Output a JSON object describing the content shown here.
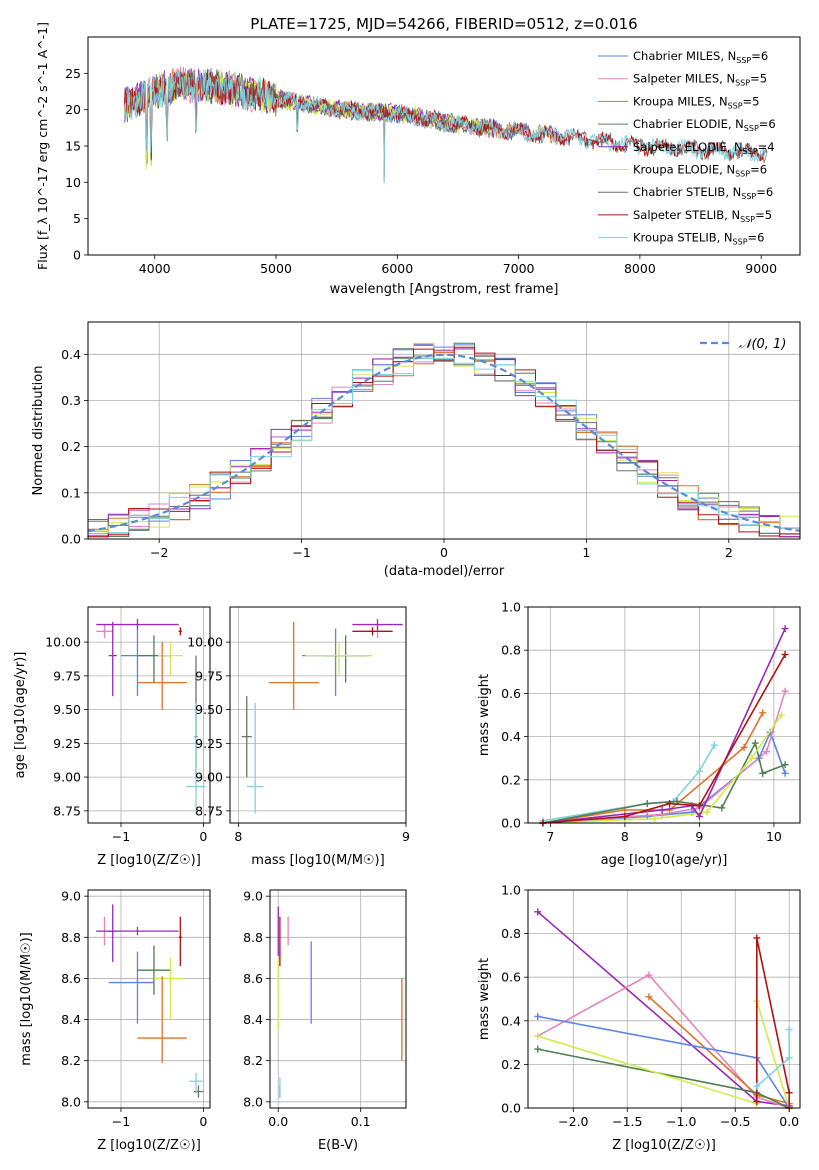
{
  "colors": {
    "blue": "#5b84e6",
    "pink": "#e384c1",
    "orange": "#de7327",
    "green": "#4f7f55",
    "purple": "#9a28b3",
    "yellow": "#d2ea4b",
    "gray": "#6f6f6f",
    "red": "#b01212",
    "cyan": "#7fd3de"
  },
  "chart_data": [
    {
      "id": "spectrum",
      "type": "line",
      "title": "PLATE=1725, MJD=54266, FIBERID=0512, z=0.016",
      "xlabel": "wavelength [Angstrom, rest frame]",
      "ylabel": "Flux [f_λ 10^-17 erg cm^-2 s^-1 A^-1]",
      "xlim": [
        3450,
        9320
      ],
      "ylim": [
        0,
        30
      ],
      "xticks": [
        "4000",
        "5000",
        "6000",
        "7000",
        "8000",
        "9000"
      ],
      "yticks": [
        "0",
        "5",
        "10",
        "15",
        "20",
        "25"
      ],
      "grid": false,
      "legend_position": "top-right",
      "continuum": {
        "x": [
          3750,
          4000,
          4200,
          4600,
          5000,
          5500,
          6000,
          6500,
          7000,
          7500,
          8000,
          8500,
          9050
        ],
        "y": [
          20.5,
          22.5,
          23.5,
          23.0,
          21.5,
          20.0,
          19.5,
          18.0,
          17.0,
          16.0,
          15.0,
          14.5,
          14.0
        ]
      },
      "series": [
        {
          "name": "Chabrier MILES",
          "nssp": "6",
          "color": "blue",
          "xmax": 7400
        },
        {
          "name": "Salpeter MILES",
          "nssp": "5",
          "color": "pink",
          "xmax": 7400
        },
        {
          "name": "Kroupa MILES",
          "nssp": "5",
          "color": "orange",
          "xmax": 7400
        },
        {
          "name": "Chabrier ELODIE",
          "nssp": "6",
          "color": "green",
          "xmax": 6800
        },
        {
          "name": "Salpeter ELODIE",
          "nssp": "4",
          "color": "purple",
          "xmax": 6800
        },
        {
          "name": "Kroupa ELODIE",
          "nssp": "6",
          "color": "yellow",
          "xmax": 6800
        },
        {
          "name": "Chabrier STELIB",
          "nssp": "6",
          "color": "gray",
          "xmax": 9050
        },
        {
          "name": "Salpeter STELIB",
          "nssp": "5",
          "color": "red",
          "xmax": 9050
        },
        {
          "name": "Kroupa STELIB",
          "nssp": "6",
          "color": "cyan",
          "xmax": 9050
        }
      ]
    },
    {
      "id": "residuals",
      "type": "line",
      "xlabel": "(data-model)/error",
      "ylabel": "Normed distribution",
      "xlim": [
        -2.5,
        2.5
      ],
      "ylim": [
        0,
        0.47
      ],
      "xticks": [
        -2,
        -1,
        0,
        1,
        2
      ],
      "xtick_labels": [
        "−2",
        "−1",
        "0",
        "1",
        "2"
      ],
      "yticks": [
        0.0,
        0.1,
        0.2,
        0.3,
        0.4
      ],
      "ytick_labels": [
        "0.0",
        "0.1",
        "0.2",
        "0.3",
        "0.4"
      ],
      "grid": true,
      "legend_position": "top-right",
      "legend_label": "𝒩(0, 1)",
      "bin_edges": [
        -2.5,
        2.5
      ],
      "bins": 35
    },
    {
      "id": "age-vs-z",
      "type": "scatter",
      "xlabel": "Z [log10(Z/Z☉)]",
      "ylabel": "age  [log10(age/yr)]",
      "xlim": [
        -1.4,
        0.08
      ],
      "ylim": [
        8.66,
        10.26
      ],
      "xticks": [
        -1,
        0
      ],
      "xtick_labels": [
        "−1",
        "0"
      ],
      "yticks": [
        8.75,
        9.0,
        9.25,
        9.5,
        9.75,
        10.0
      ],
      "ytick_labels": [
        "8.75",
        "9.00",
        "9.25",
        "9.50",
        "9.75",
        "10.00"
      ],
      "grid": true,
      "points": [
        {
          "color": "pink",
          "x": -1.2,
          "xerr": [
            0.1,
            0.1
          ],
          "y": 10.08,
          "yerr": [
            0.05,
            0.05
          ]
        },
        {
          "color": "purple",
          "x": -0.8,
          "xerr": [
            0.5,
            0.5
          ],
          "y": 10.13,
          "yerr": [
            0.04,
            0.04
          ]
        },
        {
          "color": "purple",
          "x": -1.1,
          "xerr": [
            0.05,
            0.05
          ],
          "y": 9.9,
          "yerr": [
            0.3,
            0.25
          ]
        },
        {
          "color": "blue",
          "x": -0.8,
          "xerr": [
            0.2,
            0.2
          ],
          "y": 9.9,
          "yerr": [
            0.3,
            0.2
          ]
        },
        {
          "color": "green",
          "x": -0.6,
          "xerr": [
            0.2,
            0.2
          ],
          "y": 9.9,
          "yerr": [
            0.2,
            0.15
          ]
        },
        {
          "color": "yellow",
          "x": -0.4,
          "xerr": [
            0.15,
            0.15
          ],
          "y": 9.9,
          "yerr": [
            0.15,
            0.1
          ]
        },
        {
          "color": "orange",
          "x": -0.5,
          "xerr": [
            0.3,
            0.3
          ],
          "y": 9.7,
          "yerr": [
            0.2,
            0.3
          ]
        },
        {
          "color": "red",
          "x": -0.28,
          "xerr": [
            0.02,
            0.02
          ],
          "y": 10.08,
          "yerr": [
            0.03,
            0.03
          ]
        },
        {
          "color": "gray",
          "x": -0.09,
          "xerr": [
            0.02,
            0.02
          ],
          "y": 9.3,
          "yerr": [
            0.3,
            0.6
          ]
        },
        {
          "color": "cyan",
          "x": -0.09,
          "xerr": [
            0.12,
            0.12
          ],
          "y": 8.93,
          "yerr": [
            0.2,
            0.62
          ]
        }
      ]
    },
    {
      "id": "age-vs-mass",
      "type": "scatter",
      "xlabel": "mass [log10(M/M☉)]",
      "xlim": [
        7.95,
        9.0
      ],
      "ylim": [
        8.66,
        10.26
      ],
      "xticks": [
        8,
        9
      ],
      "xtick_labels": [
        "8",
        "9"
      ],
      "yticks": [
        8.75,
        9.0,
        9.25,
        9.5,
        9.75,
        10.0
      ],
      "ytick_labels": [
        "8.75",
        "9.00",
        "9.25",
        "9.50",
        "9.75",
        "10.00"
      ],
      "grid": true,
      "points": [
        {
          "color": "orange",
          "x": 8.33,
          "xerr": [
            0.15,
            0.15
          ],
          "y": 9.7,
          "yerr": [
            0.2,
            0.45
          ]
        },
        {
          "color": "blue",
          "x": 8.58,
          "xerr": [
            0.2,
            0.2
          ],
          "y": 9.9,
          "yerr": [
            0.3,
            0.2
          ]
        },
        {
          "color": "green",
          "x": 8.64,
          "xerr": [
            0.12,
            0.12
          ],
          "y": 9.9,
          "yerr": [
            0.2,
            0.15
          ]
        },
        {
          "color": "yellow",
          "x": 8.6,
          "xerr": [
            0.2,
            0.2
          ],
          "y": 9.9,
          "yerr": [
            0.15,
            0.1
          ]
        },
        {
          "color": "pink",
          "x": 8.83,
          "xerr": [
            0.05,
            0.05
          ],
          "y": 10.08,
          "yerr": [
            0.05,
            0.05
          ]
        },
        {
          "color": "purple",
          "x": 8.83,
          "xerr": [
            0.15,
            0.15
          ],
          "y": 10.13,
          "yerr": [
            0.04,
            0.04
          ]
        },
        {
          "color": "red",
          "x": 8.8,
          "xerr": [
            0.12,
            0.12
          ],
          "y": 10.08,
          "yerr": [
            0.03,
            0.03
          ]
        },
        {
          "color": "gray",
          "x": 8.05,
          "xerr": [
            0.03,
            0.03
          ],
          "y": 9.3,
          "yerr": [
            0.3,
            0.3
          ]
        },
        {
          "color": "cyan",
          "x": 8.1,
          "xerr": [
            0.05,
            0.05
          ],
          "y": 8.93,
          "yerr": [
            0.2,
            0.62
          ]
        }
      ]
    },
    {
      "id": "weight-vs-age",
      "type": "line",
      "xlabel": "age  [log10(age/yr)]",
      "ylabel": "mass weight",
      "xlim": [
        6.7,
        10.35
      ],
      "ylim": [
        0,
        1.0
      ],
      "xticks": [
        7,
        8,
        9,
        10
      ],
      "xtick_labels": [
        "7",
        "8",
        "9",
        "10"
      ],
      "yticks": [
        0.0,
        0.2,
        0.4,
        0.6,
        0.8,
        1.0
      ],
      "ytick_labels": [
        "0.0",
        "0.2",
        "0.4",
        "0.6",
        "0.8",
        "1.0"
      ],
      "grid": true,
      "series": [
        {
          "color": "cyan",
          "x": [
            6.9,
            8.3,
            8.65,
            9.0,
            9.2
          ],
          "y": [
            0.01,
            0.09,
            0.1,
            0.24,
            0.36
          ]
        },
        {
          "color": "orange",
          "x": [
            6.9,
            8.0,
            8.6,
            9.6,
            9.85
          ],
          "y": [
            0.0,
            0.06,
            0.06,
            0.35,
            0.51
          ]
        },
        {
          "color": "blue",
          "x": [
            6.9,
            8.3,
            8.9,
            9.8,
            9.95,
            10.15
          ],
          "y": [
            0.0,
            0.03,
            0.05,
            0.3,
            0.42,
            0.23
          ]
        },
        {
          "color": "pink",
          "x": [
            6.9,
            8.5,
            9.0,
            9.9,
            10.15
          ],
          "y": [
            0.0,
            0.04,
            0.07,
            0.33,
            0.61
          ]
        },
        {
          "color": "green",
          "x": [
            6.9,
            8.3,
            8.7,
            9.3,
            9.75,
            9.85,
            10.15
          ],
          "y": [
            0.0,
            0.09,
            0.1,
            0.07,
            0.37,
            0.23,
            0.27
          ]
        },
        {
          "color": "yellow",
          "x": [
            6.9,
            8.4,
            9.1,
            9.7,
            10.1
          ],
          "y": [
            0.0,
            0.02,
            0.05,
            0.3,
            0.5
          ]
        },
        {
          "color": "purple",
          "x": [
            6.9,
            8.5,
            8.9,
            9.0,
            10.15
          ],
          "y": [
            0.0,
            0.06,
            0.08,
            0.03,
            0.9
          ]
        },
        {
          "color": "red",
          "x": [
            6.9,
            8.0,
            8.6,
            9.0,
            10.15
          ],
          "y": [
            0.0,
            0.03,
            0.09,
            0.08,
            0.78
          ]
        }
      ]
    },
    {
      "id": "mass-vs-z",
      "type": "scatter",
      "xlabel": "Z [log10(Z/Z☉)]",
      "ylabel": "mass [log10(M/M☉)]",
      "xlim": [
        -1.4,
        0.08
      ],
      "ylim": [
        7.97,
        9.03
      ],
      "xticks": [
        -1,
        0
      ],
      "xtick_labels": [
        "−1",
        "0"
      ],
      "yticks": [
        8.0,
        8.2,
        8.4,
        8.6,
        8.8,
        9.0
      ],
      "ytick_labels": [
        "8.0",
        "8.2",
        "8.4",
        "8.6",
        "8.8",
        "9.0"
      ],
      "grid": true,
      "points": [
        {
          "color": "pink",
          "x": -1.2,
          "xerr": [
            0.1,
            0.1
          ],
          "y": 8.83,
          "yerr": [
            0.07,
            0.07
          ]
        },
        {
          "color": "purple",
          "x": -0.8,
          "xerr": [
            0.5,
            0.5
          ],
          "y": 8.83,
          "yerr": [
            0.02,
            0.02
          ]
        },
        {
          "color": "purple",
          "x": -1.1,
          "xerr": [
            0.05,
            0.05
          ],
          "y": 8.83,
          "yerr": [
            0.15,
            0.13
          ]
        },
        {
          "color": "blue",
          "x": -0.8,
          "xerr": [
            0.35,
            0.2
          ],
          "y": 8.58,
          "yerr": [
            0.2,
            0.15
          ]
        },
        {
          "color": "green",
          "x": -0.6,
          "xerr": [
            0.2,
            0.2
          ],
          "y": 8.64,
          "yerr": [
            0.12,
            0.12
          ]
        },
        {
          "color": "yellow",
          "x": -0.4,
          "xerr": [
            0.2,
            0.15
          ],
          "y": 8.6,
          "yerr": [
            0.2,
            0.1
          ]
        },
        {
          "color": "orange",
          "x": -0.5,
          "xerr": [
            0.3,
            0.3
          ],
          "y": 8.31,
          "yerr": [
            0.12,
            0.3
          ]
        },
        {
          "color": "red",
          "x": -0.28,
          "xerr": [
            0.02,
            0.02
          ],
          "y": 8.8,
          "yerr": [
            0.14,
            0.1
          ]
        },
        {
          "color": "gray",
          "x": -0.06,
          "xerr": [
            0.06,
            0.06
          ],
          "y": 8.05,
          "yerr": [
            0.03,
            0.03
          ]
        },
        {
          "color": "cyan",
          "x": -0.09,
          "xerr": [
            0.08,
            0.08
          ],
          "y": 8.1,
          "yerr": [
            0.06,
            0.04
          ]
        }
      ]
    },
    {
      "id": "mass-vs-ebv",
      "type": "scatter",
      "xlabel": "E(B-V)",
      "xlim": [
        -0.01,
        0.155
      ],
      "ylim": [
        7.97,
        9.03
      ],
      "xticks": [
        0.0,
        0.1
      ],
      "xtick_labels": [
        "0.0",
        "0.1"
      ],
      "yticks": [
        8.0,
        8.2,
        8.4,
        8.6,
        8.8,
        9.0
      ],
      "ytick_labels": [
        "8.0",
        "8.2",
        "8.4",
        "8.6",
        "8.8",
        "9.0"
      ],
      "grid": true,
      "points": [
        {
          "color": "purple",
          "x": 0.0,
          "xerr": [
            0,
            0
          ],
          "y": 8.83,
          "yerr": [
            0.12,
            0.12
          ]
        },
        {
          "color": "red",
          "x": 0.002,
          "xerr": [
            0,
            0
          ],
          "y": 8.8,
          "yerr": [
            0.14,
            0.1
          ]
        },
        {
          "color": "pink",
          "x": 0.012,
          "xerr": [
            0,
            0
          ],
          "y": 8.83,
          "yerr": [
            0.07,
            0.07
          ]
        },
        {
          "color": "yellow",
          "x": 0.0,
          "xerr": [
            0,
            0
          ],
          "y": 8.6,
          "yerr": [
            0.25,
            0.1
          ]
        },
        {
          "color": "blue",
          "x": 0.04,
          "xerr": [
            0,
            0
          ],
          "y": 8.58,
          "yerr": [
            0.2,
            0.2
          ]
        },
        {
          "color": "orange",
          "x": 0.15,
          "xerr": [
            0,
            0
          ],
          "y": 8.4,
          "yerr": [
            0.2,
            0.2
          ]
        },
        {
          "color": "gray",
          "x": 0.002,
          "xerr": [
            0,
            0
          ],
          "y": 8.05,
          "yerr": [
            0.03,
            0.03
          ]
        },
        {
          "color": "cyan",
          "x": 0.002,
          "xerr": [
            0,
            0
          ],
          "y": 8.08,
          "yerr": [
            0.06,
            0.04
          ]
        }
      ]
    },
    {
      "id": "weight-vs-z",
      "type": "line",
      "xlabel": "Z [log10(Z/Z☉)]",
      "ylabel": "mass weight",
      "xlim": [
        -2.42,
        0.1
      ],
      "ylim": [
        0,
        1.0
      ],
      "xticks": [
        -2.0,
        -1.5,
        -1.0,
        -0.5,
        0.0
      ],
      "xtick_labels": [
        "−2.0",
        "−1.5",
        "−1.0",
        "−0.5",
        "0.0"
      ],
      "yticks": [
        0.0,
        0.2,
        0.4,
        0.6,
        0.8,
        1.0
      ],
      "ytick_labels": [
        "0.0",
        "0.2",
        "0.4",
        "0.6",
        "0.8",
        "1.0"
      ],
      "grid": true,
      "series": [
        {
          "color": "purple",
          "x": [
            -2.33,
            -0.3,
            0.0
          ],
          "y": [
            0.9,
            0.03,
            0.01
          ]
        },
        {
          "color": "pink",
          "x": [
            -2.33,
            -1.3,
            -0.3,
            0.0
          ],
          "y": [
            0.33,
            0.61,
            0.05,
            0.0
          ]
        },
        {
          "color": "orange",
          "x": [
            -1.3,
            -0.3,
            0.0
          ],
          "y": [
            0.51,
            0.06,
            0.02
          ]
        },
        {
          "color": "blue",
          "x": [
            -2.33,
            -0.3,
            0.0
          ],
          "y": [
            0.42,
            0.23,
            0.0
          ]
        },
        {
          "color": "green",
          "x": [
            -2.33,
            -0.3,
            0.0
          ],
          "y": [
            0.27,
            0.07,
            0.0
          ]
        },
        {
          "color": "yellow",
          "x": [
            -2.33,
            -0.3,
            -0.3,
            0.0
          ],
          "y": [
            0.33,
            0.02,
            0.49,
            0.0
          ]
        },
        {
          "color": "red",
          "x": [
            -0.3,
            -0.3,
            0.0,
            0.0
          ],
          "y": [
            0.03,
            0.78,
            0.07,
            0.0
          ]
        },
        {
          "color": "cyan",
          "x": [
            -0.3,
            0.0,
            0.0
          ],
          "y": [
            0.1,
            0.23,
            0.36
          ]
        }
      ]
    }
  ]
}
